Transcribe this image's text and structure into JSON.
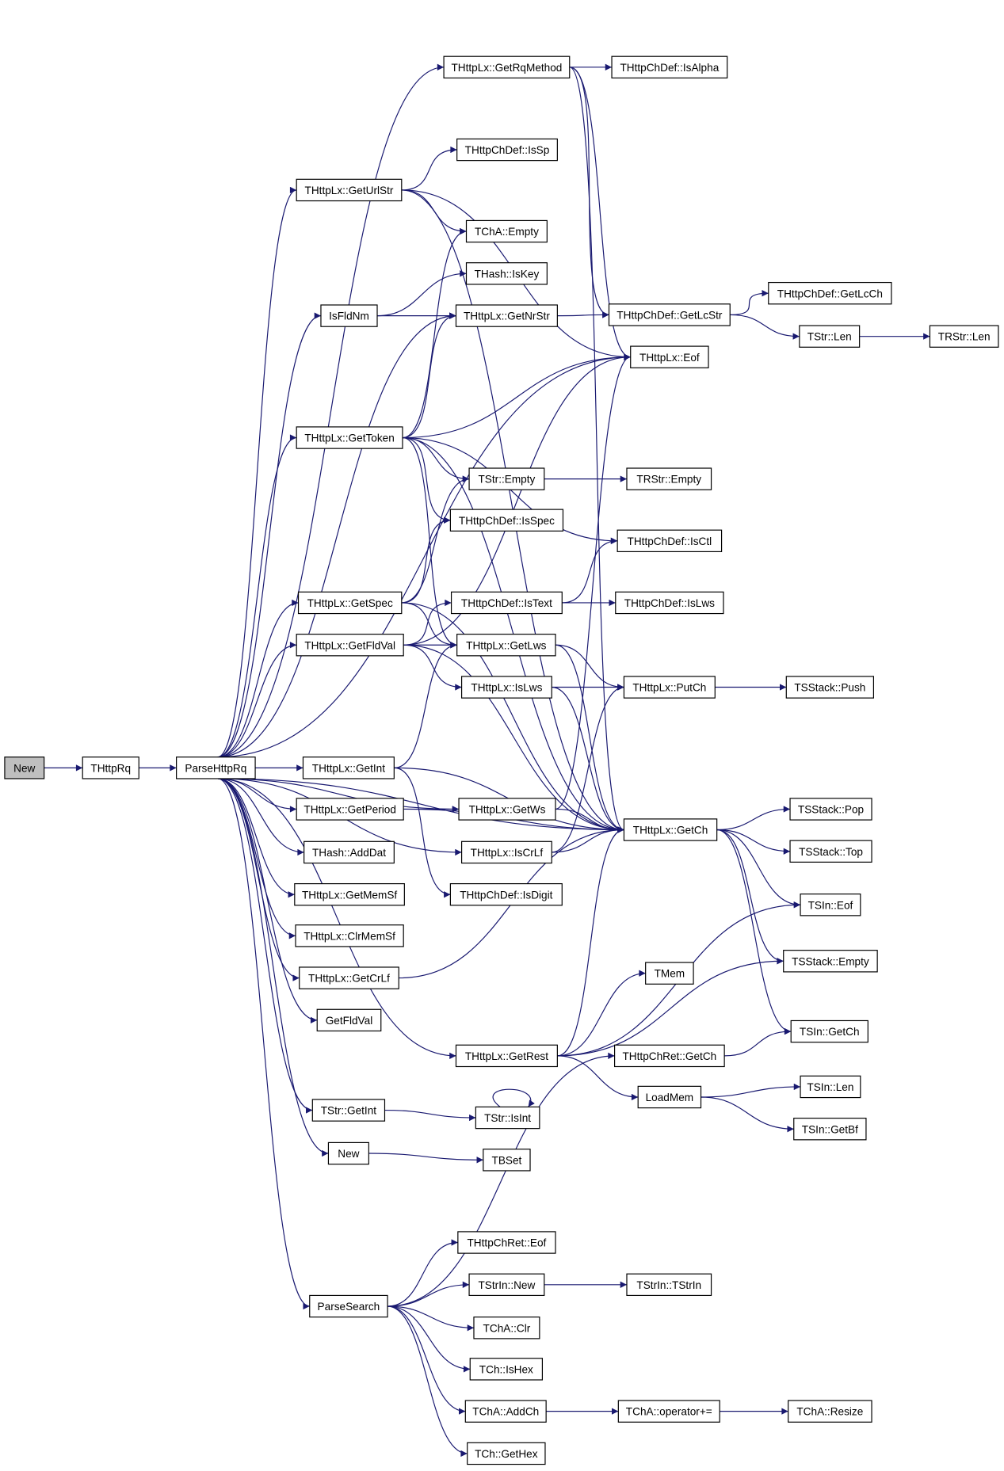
{
  "colors": {
    "edge": "#191970",
    "root_fill": "#bfbfbf",
    "node_fill": "#ffffff"
  },
  "root": "New",
  "nodes": [
    {
      "id": "New",
      "label": "New"
    },
    {
      "id": "THttpRq",
      "label": "THttpRq"
    },
    {
      "id": "ParseHttpRq",
      "label": "ParseHttpRq"
    },
    {
      "id": "GetRqMethod",
      "label": "THttpLx::GetRqMethod"
    },
    {
      "id": "IsAlpha",
      "label": "THttpChDef::IsAlpha"
    },
    {
      "id": "IsSp",
      "label": "THttpChDef::IsSp"
    },
    {
      "id": "GetUrlStr",
      "label": "THttpLx::GetUrlStr"
    },
    {
      "id": "TChAEmpty",
      "label": "TChA::Empty"
    },
    {
      "id": "IsKey",
      "label": "THash::IsKey"
    },
    {
      "id": "IsFldNm",
      "label": "IsFldNm"
    },
    {
      "id": "GetNrStr",
      "label": "THttpLx::GetNrStr"
    },
    {
      "id": "GetLcStr",
      "label": "THttpChDef::GetLcStr"
    },
    {
      "id": "GetLcCh",
      "label": "THttpChDef::GetLcCh"
    },
    {
      "id": "TStrLen",
      "label": "TStr::Len"
    },
    {
      "id": "TRStrLen",
      "label": "TRStr::Len"
    },
    {
      "id": "LxEof",
      "label": "THttpLx::Eof"
    },
    {
      "id": "GetToken",
      "label": "THttpLx::GetToken"
    },
    {
      "id": "TStrEmpty",
      "label": "TStr::Empty"
    },
    {
      "id": "TRStrEmpty",
      "label": "TRStr::Empty"
    },
    {
      "id": "IsSpec",
      "label": "THttpChDef::IsSpec"
    },
    {
      "id": "IsCtl",
      "label": "THttpChDef::IsCtl"
    },
    {
      "id": "GetSpec",
      "label": "THttpLx::GetSpec"
    },
    {
      "id": "IsText",
      "label": "THttpChDef::IsText"
    },
    {
      "id": "ChDefIsLws",
      "label": "THttpChDef::IsLws"
    },
    {
      "id": "LxGetFldVal",
      "label": "THttpLx::GetFldVal"
    },
    {
      "id": "GetLws",
      "label": "THttpLx::GetLws"
    },
    {
      "id": "LxIsLws",
      "label": "THttpLx::IsLws"
    },
    {
      "id": "PutCh",
      "label": "THttpLx::PutCh"
    },
    {
      "id": "Push",
      "label": "TSStack::Push"
    },
    {
      "id": "GetInt",
      "label": "THttpLx::GetInt"
    },
    {
      "id": "GetPeriod",
      "label": "THttpLx::GetPeriod"
    },
    {
      "id": "GetWs",
      "label": "THttpLx::GetWs"
    },
    {
      "id": "GetCh",
      "label": "THttpLx::GetCh"
    },
    {
      "id": "Pop",
      "label": "TSStack::Pop"
    },
    {
      "id": "Top",
      "label": "TSStack::Top"
    },
    {
      "id": "AddDat",
      "label": "THash::AddDat"
    },
    {
      "id": "IsCrLf",
      "label": "THttpLx::IsCrLf"
    },
    {
      "id": "IsDigit",
      "label": "THttpChDef::IsDigit"
    },
    {
      "id": "GetMemSf",
      "label": "THttpLx::GetMemSf"
    },
    {
      "id": "SInEof",
      "label": "TSIn::Eof"
    },
    {
      "id": "ClrMemSf",
      "label": "THttpLx::ClrMemSf"
    },
    {
      "id": "SStackEmpty",
      "label": "TSStack::Empty"
    },
    {
      "id": "GetCrLf",
      "label": "THttpLx::GetCrLf"
    },
    {
      "id": "TMem",
      "label": "TMem"
    },
    {
      "id": "GetFldVal",
      "label": "GetFldVal"
    },
    {
      "id": "SInGetCh",
      "label": "TSIn::GetCh"
    },
    {
      "id": "GetRest",
      "label": "THttpLx::GetRest"
    },
    {
      "id": "ChRetGetCh",
      "label": "THttpChRet::GetCh"
    },
    {
      "id": "LoadMem",
      "label": "LoadMem"
    },
    {
      "id": "SInLen",
      "label": "TSIn::Len"
    },
    {
      "id": "SInGetBf",
      "label": "TSIn::GetBf"
    },
    {
      "id": "StrGetInt",
      "label": "TStr::GetInt"
    },
    {
      "id": "StrIsInt",
      "label": "TStr::IsInt"
    },
    {
      "id": "New2",
      "label": "New"
    },
    {
      "id": "TBSet",
      "label": "TBSet"
    },
    {
      "id": "ChRetEof",
      "label": "THttpChRet::Eof"
    },
    {
      "id": "ParseSearch",
      "label": "ParseSearch"
    },
    {
      "id": "StrInNew",
      "label": "TStrIn::New"
    },
    {
      "id": "StrInCtor",
      "label": "TStrIn::TStrIn"
    },
    {
      "id": "ChAClr",
      "label": "TChA::Clr"
    },
    {
      "id": "IsHex",
      "label": "TCh::IsHex"
    },
    {
      "id": "AddCh",
      "label": "TChA::AddCh"
    },
    {
      "id": "OpPlusEq",
      "label": "TChA::operator+="
    },
    {
      "id": "Resize",
      "label": "TChA::Resize"
    },
    {
      "id": "GetHex",
      "label": "TCh::GetHex"
    }
  ],
  "edges": [
    [
      "New",
      "THttpRq"
    ],
    [
      "THttpRq",
      "ParseHttpRq"
    ],
    [
      "ParseHttpRq",
      "GetRqMethod"
    ],
    [
      "ParseHttpRq",
      "GetUrlStr"
    ],
    [
      "ParseHttpRq",
      "IsFldNm"
    ],
    [
      "ParseHttpRq",
      "GetNrStr"
    ],
    [
      "ParseHttpRq",
      "GetToken"
    ],
    [
      "ParseHttpRq",
      "GetSpec"
    ],
    [
      "ParseHttpRq",
      "LxGetFldVal"
    ],
    [
      "ParseHttpRq",
      "GetInt"
    ],
    [
      "ParseHttpRq",
      "GetPeriod"
    ],
    [
      "ParseHttpRq",
      "AddDat"
    ],
    [
      "ParseHttpRq",
      "GetMemSf"
    ],
    [
      "ParseHttpRq",
      "ClrMemSf"
    ],
    [
      "ParseHttpRq",
      "GetCrLf"
    ],
    [
      "ParseHttpRq",
      "GetFldVal"
    ],
    [
      "ParseHttpRq",
      "GetRest"
    ],
    [
      "ParseHttpRq",
      "StrGetInt"
    ],
    [
      "ParseHttpRq",
      "New2"
    ],
    [
      "ParseHttpRq",
      "ParseSearch"
    ],
    [
      "ParseHttpRq",
      "GetWs"
    ],
    [
      "ParseHttpRq",
      "IsCrLf"
    ],
    [
      "ParseHttpRq",
      "LxEof"
    ],
    [
      "ParseHttpRq",
      "GetCh"
    ],
    [
      "GetRqMethod",
      "IsAlpha"
    ],
    [
      "GetRqMethod",
      "GetLcStr"
    ],
    [
      "GetRqMethod",
      "LxEof"
    ],
    [
      "GetRqMethod",
      "GetCh"
    ],
    [
      "GetUrlStr",
      "IsSp"
    ],
    [
      "GetUrlStr",
      "TChAEmpty"
    ],
    [
      "GetUrlStr",
      "LxEof"
    ],
    [
      "GetUrlStr",
      "GetCh"
    ],
    [
      "IsFldNm",
      "IsKey"
    ],
    [
      "IsFldNm",
      "GetNrStr"
    ],
    [
      "GetNrStr",
      "GetLcStr"
    ],
    [
      "GetLcStr",
      "GetLcCh"
    ],
    [
      "GetLcStr",
      "TStrLen"
    ],
    [
      "TStrLen",
      "TRStrLen"
    ],
    [
      "GetToken",
      "TChAEmpty"
    ],
    [
      "GetToken",
      "GetNrStr"
    ],
    [
      "GetToken",
      "LxEof"
    ],
    [
      "GetToken",
      "TStrEmpty"
    ],
    [
      "GetToken",
      "IsSpec"
    ],
    [
      "GetToken",
      "GetLws"
    ],
    [
      "GetToken",
      "GetCh"
    ],
    [
      "GetToken",
      "IsCtl"
    ],
    [
      "TStrEmpty",
      "TRStrEmpty"
    ],
    [
      "GetSpec",
      "TStrEmpty"
    ],
    [
      "GetSpec",
      "IsSpec"
    ],
    [
      "GetSpec",
      "GetLws"
    ],
    [
      "GetSpec",
      "GetCh"
    ],
    [
      "IsText",
      "IsCtl"
    ],
    [
      "IsText",
      "ChDefIsLws"
    ],
    [
      "LxGetFldVal",
      "IsText"
    ],
    [
      "LxGetFldVal",
      "GetLws"
    ],
    [
      "LxGetFldVal",
      "LxIsLws"
    ],
    [
      "LxGetFldVal",
      "LxEof"
    ],
    [
      "LxGetFldVal",
      "GetCh"
    ],
    [
      "GetLws",
      "PutCh"
    ],
    [
      "GetLws",
      "GetCh"
    ],
    [
      "LxIsLws",
      "PutCh"
    ],
    [
      "LxIsLws",
      "GetCh"
    ],
    [
      "PutCh",
      "Push"
    ],
    [
      "GetInt",
      "GetLws"
    ],
    [
      "GetInt",
      "IsDigit"
    ],
    [
      "GetInt",
      "GetCh"
    ],
    [
      "GetPeriod",
      "GetWs"
    ],
    [
      "GetPeriod",
      "GetCh"
    ],
    [
      "GetWs",
      "LxEof"
    ],
    [
      "GetWs",
      "GetCh"
    ],
    [
      "IsCrLf",
      "PutCh"
    ],
    [
      "IsCrLf",
      "GetCh"
    ],
    [
      "GetCh",
      "Pop"
    ],
    [
      "GetCh",
      "Top"
    ],
    [
      "GetCh",
      "SInEof"
    ],
    [
      "GetCh",
      "SStackEmpty"
    ],
    [
      "GetCh",
      "SInGetCh"
    ],
    [
      "GetCrLf",
      "GetCh"
    ],
    [
      "GetRest",
      "GetCh"
    ],
    [
      "GetRest",
      "TMem"
    ],
    [
      "GetRest",
      "SStackEmpty"
    ],
    [
      "GetRest",
      "SInEof"
    ],
    [
      "GetRest",
      "LoadMem"
    ],
    [
      "LoadMem",
      "SInLen"
    ],
    [
      "LoadMem",
      "SInGetBf"
    ],
    [
      "ChRetGetCh",
      "SInGetCh"
    ],
    [
      "StrGetInt",
      "StrIsInt"
    ],
    [
      "StrIsInt",
      "StrIsInt"
    ],
    [
      "New2",
      "TBSet"
    ],
    [
      "ParseSearch",
      "ChRetGetCh"
    ],
    [
      "ParseSearch",
      "ChRetEof"
    ],
    [
      "ParseSearch",
      "StrInNew"
    ],
    [
      "ParseSearch",
      "ChAClr"
    ],
    [
      "ParseSearch",
      "IsHex"
    ],
    [
      "ParseSearch",
      "AddCh"
    ],
    [
      "ParseSearch",
      "GetHex"
    ],
    [
      "StrInNew",
      "StrInCtor"
    ],
    [
      "AddCh",
      "OpPlusEq"
    ],
    [
      "OpPlusEq",
      "Resize"
    ]
  ]
}
